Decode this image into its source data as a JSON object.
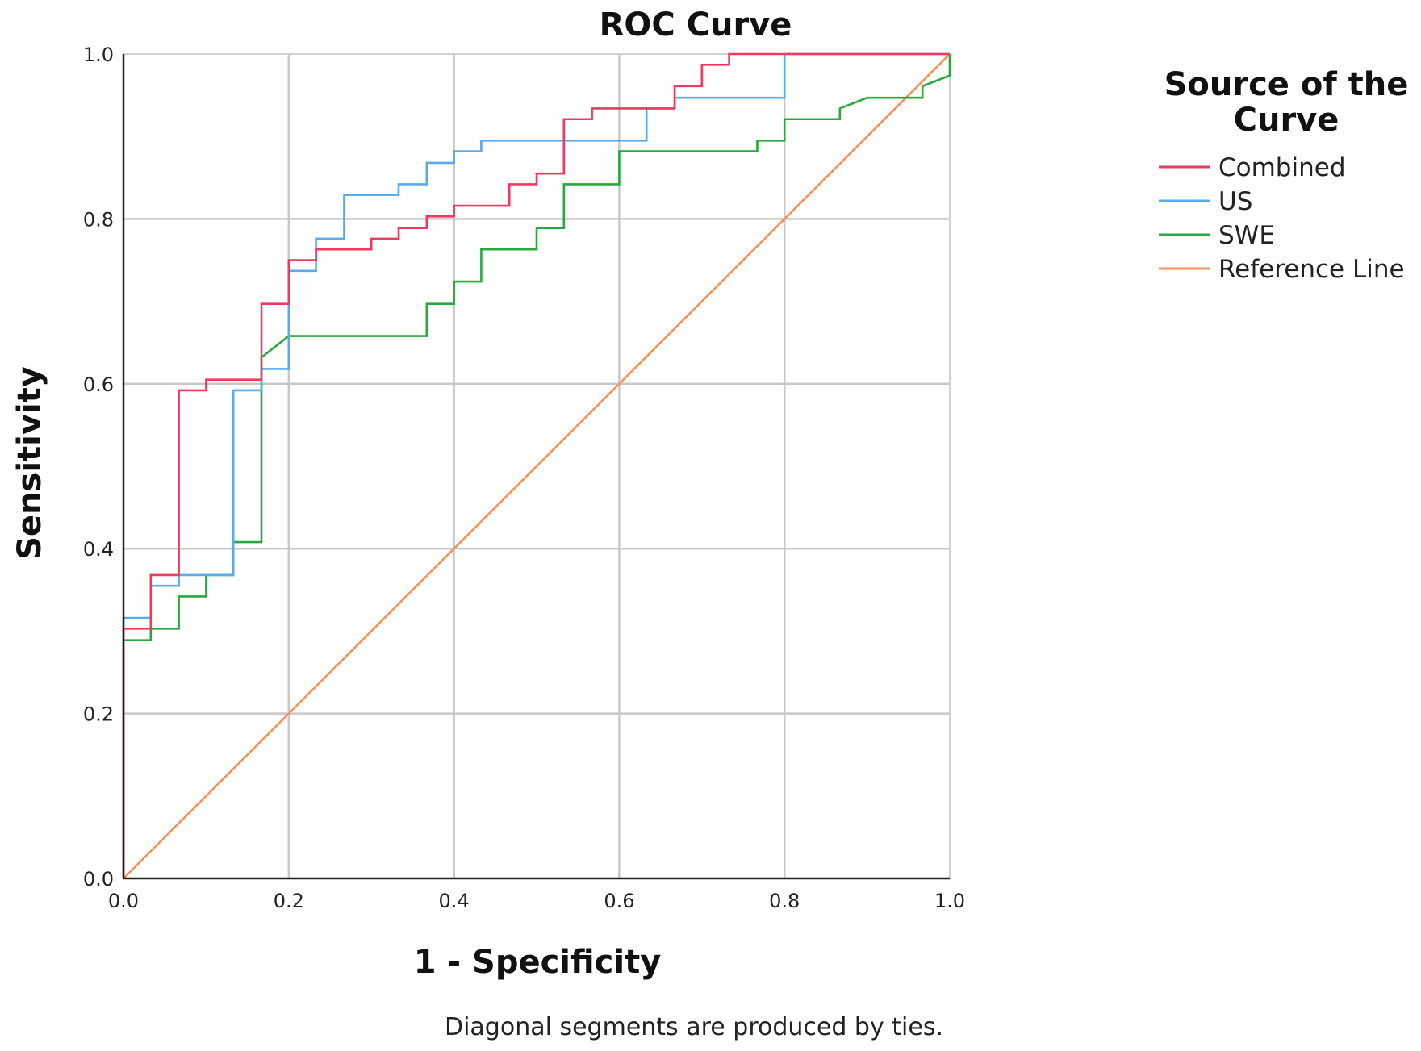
{
  "chart_data": {
    "type": "line",
    "title": "ROC Curve",
    "xlabel": "1 - Specificity",
    "ylabel": "Sensitivity",
    "xlim": [
      0,
      1
    ],
    "ylim": [
      0,
      1
    ],
    "x_ticks": [
      0,
      0.2,
      0.4,
      0.6,
      0.8,
      1.0
    ],
    "y_ticks": [
      0,
      0.2,
      0.4,
      0.6,
      0.8,
      1.0
    ],
    "x_tick_labels": [
      "0.0",
      "0.2",
      "0.4",
      "0.6",
      "0.8",
      "1.0"
    ],
    "y_tick_labels": [
      "0.0",
      "0.2",
      "0.4",
      "0.6",
      "0.8",
      "1.0"
    ],
    "grid": true,
    "legend": {
      "title": [
        "Source of the",
        "Curve"
      ],
      "placement": "top-right-outside"
    },
    "footnote": "Diagonal segments are produced by ties.",
    "series": [
      {
        "name": "Combined",
        "color": "#ef3a5d",
        "points": [
          [
            0,
            0
          ],
          [
            0,
            0.303
          ],
          [
            0.033,
            0.303
          ],
          [
            0.033,
            0.368
          ],
          [
            0.067,
            0.368
          ],
          [
            0.067,
            0.592
          ],
          [
            0.1,
            0.592
          ],
          [
            0.1,
            0.605
          ],
          [
            0.167,
            0.605
          ],
          [
            0.167,
            0.697
          ],
          [
            0.2,
            0.697
          ],
          [
            0.2,
            0.75
          ],
          [
            0.233,
            0.75
          ],
          [
            0.233,
            0.763
          ],
          [
            0.3,
            0.763
          ],
          [
            0.3,
            0.776
          ],
          [
            0.333,
            0.776
          ],
          [
            0.333,
            0.789
          ],
          [
            0.367,
            0.789
          ],
          [
            0.367,
            0.803
          ],
          [
            0.4,
            0.803
          ],
          [
            0.4,
            0.816
          ],
          [
            0.467,
            0.816
          ],
          [
            0.467,
            0.842
          ],
          [
            0.5,
            0.842
          ],
          [
            0.5,
            0.855
          ],
          [
            0.533,
            0.855
          ],
          [
            0.533,
            0.921
          ],
          [
            0.567,
            0.921
          ],
          [
            0.567,
            0.934
          ],
          [
            0.667,
            0.934
          ],
          [
            0.667,
            0.961
          ],
          [
            0.7,
            0.961
          ],
          [
            0.7,
            0.987
          ],
          [
            0.733,
            0.987
          ],
          [
            0.733,
            1.0
          ],
          [
            1.0,
            1.0
          ]
        ]
      },
      {
        "name": "US",
        "color": "#5aabec",
        "points": [
          [
            0,
            0
          ],
          [
            0,
            0.316
          ],
          [
            0.033,
            0.316
          ],
          [
            0.033,
            0.355
          ],
          [
            0.067,
            0.355
          ],
          [
            0.067,
            0.368
          ],
          [
            0.133,
            0.368
          ],
          [
            0.133,
            0.592
          ],
          [
            0.167,
            0.592
          ],
          [
            0.167,
            0.618
          ],
          [
            0.2,
            0.618
          ],
          [
            0.2,
            0.737
          ],
          [
            0.233,
            0.737
          ],
          [
            0.233,
            0.776
          ],
          [
            0.267,
            0.776
          ],
          [
            0.267,
            0.829
          ],
          [
            0.333,
            0.829
          ],
          [
            0.333,
            0.842
          ],
          [
            0.367,
            0.842
          ],
          [
            0.367,
            0.868
          ],
          [
            0.4,
            0.868
          ],
          [
            0.4,
            0.882
          ],
          [
            0.433,
            0.882
          ],
          [
            0.433,
            0.895
          ],
          [
            0.633,
            0.895
          ],
          [
            0.633,
            0.934
          ],
          [
            0.667,
            0.934
          ],
          [
            0.667,
            0.947
          ],
          [
            0.8,
            0.947
          ],
          [
            0.8,
            1.0
          ],
          [
            1.0,
            1.0
          ]
        ]
      },
      {
        "name": "SWE",
        "color": "#2aa83f",
        "points": [
          [
            0,
            0
          ],
          [
            0,
            0.289
          ],
          [
            0.033,
            0.289
          ],
          [
            0.033,
            0.303
          ],
          [
            0.067,
            0.303
          ],
          [
            0.067,
            0.342
          ],
          [
            0.1,
            0.342
          ],
          [
            0.1,
            0.368
          ],
          [
            0.133,
            0.368
          ],
          [
            0.133,
            0.408
          ],
          [
            0.167,
            0.408
          ],
          [
            0.167,
            0.632
          ],
          [
            0.2,
            0.658
          ],
          [
            0.367,
            0.658
          ],
          [
            0.367,
            0.697
          ],
          [
            0.4,
            0.697
          ],
          [
            0.4,
            0.724
          ],
          [
            0.433,
            0.724
          ],
          [
            0.433,
            0.763
          ],
          [
            0.5,
            0.763
          ],
          [
            0.5,
            0.789
          ],
          [
            0.533,
            0.789
          ],
          [
            0.533,
            0.842
          ],
          [
            0.6,
            0.842
          ],
          [
            0.6,
            0.882
          ],
          [
            0.767,
            0.882
          ],
          [
            0.767,
            0.895
          ],
          [
            0.8,
            0.895
          ],
          [
            0.8,
            0.921
          ],
          [
            0.867,
            0.921
          ],
          [
            0.867,
            0.934
          ],
          [
            0.9,
            0.947
          ],
          [
            0.967,
            0.947
          ],
          [
            0.967,
            0.961
          ],
          [
            1.0,
            0.974
          ],
          [
            1.0,
            1.0
          ]
        ]
      },
      {
        "name": "Reference Line",
        "color": "#f79257",
        "points": [
          [
            0,
            0
          ],
          [
            1,
            1
          ]
        ]
      }
    ]
  }
}
